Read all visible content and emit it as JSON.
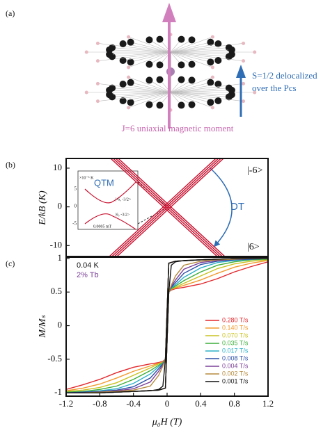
{
  "figure_a": {
    "label": "(a)",
    "spin_label_1": "S=1/2 delocalized",
    "spin_label_2": "over the Pcs",
    "moment_label": "J=6 uniaxial magnetic moment"
  },
  "chart_data": [
    {
      "type": "line",
      "panel_label": "(b)",
      "y_label": "E/kB (K)",
      "color": "#c8102e",
      "xlim": [
        -1.2,
        1.2
      ],
      "ylim": [
        -13,
        12.5
      ],
      "yticks": [
        -10,
        0,
        10
      ],
      "state_top": "|-6>",
      "state_bottom": "|6>",
      "transition_label": "DT",
      "inset": {
        "label": "QTM",
        "unit": "×10⁻⁶ K",
        "yticks": [
          "5",
          "0",
          "-5"
        ],
        "state_top": "|-6, -3/2>",
        "state_bottom": "|6, -3/2>",
        "scale": "0.0005 mT"
      },
      "series": [
        {
          "x": [
            -0.695,
            0.605
          ],
          "values": [
            13,
            -13
          ]
        },
        {
          "x": [
            -0.665,
            0.635
          ],
          "values": [
            13,
            -13
          ]
        },
        {
          "x": [
            -0.635,
            0.665
          ],
          "values": [
            13,
            -13
          ]
        },
        {
          "x": [
            -0.605,
            0.695
          ],
          "values": [
            13,
            -13
          ]
        },
        {
          "x": [
            -0.695,
            0.605
          ],
          "values": [
            -13,
            13
          ]
        },
        {
          "x": [
            -0.665,
            0.635
          ],
          "values": [
            -13,
            13
          ]
        },
        {
          "x": [
            -0.635,
            0.665
          ],
          "values": [
            -13,
            13
          ]
        },
        {
          "x": [
            -0.605,
            0.695
          ],
          "values": [
            -13,
            13
          ]
        }
      ]
    },
    {
      "type": "line",
      "panel_label": "(c)",
      "x_label": "μ₀H (T)",
      "y_label": "M/Mₛ",
      "temperature": "0.04 K",
      "doping": "2% Tb",
      "legend": "lower right",
      "xlim": [
        -1.2,
        1.2
      ],
      "ylim": [
        -1.05,
        1.03
      ],
      "xticks": [
        -1.2,
        -0.8,
        -0.4,
        0,
        0.4,
        0.8,
        1.2
      ],
      "yticks": [
        -1,
        -0.5,
        0,
        0.5,
        1
      ],
      "x": [
        -1.2,
        -0.8,
        -0.4,
        -0.1,
        -0.02,
        0.02,
        0.05,
        0.1,
        0.2,
        0.4,
        0.6,
        0.8,
        1.0,
        1.2,
        1.2,
        0.8,
        0.4,
        0.1,
        0.02,
        -0.02,
        -0.05,
        -0.1,
        -0.2,
        -0.4,
        -0.6,
        -0.8,
        -1.0,
        -1.2
      ],
      "series": [
        {
          "name": "0.280 T/s",
          "color": "#e3262b",
          "values": [
            -1,
            -1,
            -0.98,
            -0.96,
            -0.93,
            0.5,
            0.53,
            0.55,
            0.57,
            0.62,
            0.7,
            0.8,
            0.88,
            0.95,
            1,
            1,
            0.98,
            0.96,
            0.93,
            -0.5,
            -0.53,
            -0.55,
            -0.57,
            -0.62,
            -0.7,
            -0.8,
            -0.88,
            -0.95
          ]
        },
        {
          "name": "0.140 T/s",
          "color": "#f39a2d",
          "values": [
            -1,
            -1,
            -0.98,
            -0.96,
            -0.93,
            0.5,
            0.54,
            0.56,
            0.6,
            0.68,
            0.78,
            0.87,
            0.93,
            0.97,
            1,
            1,
            0.98,
            0.96,
            0.93,
            -0.5,
            -0.54,
            -0.56,
            -0.6,
            -0.68,
            -0.78,
            -0.87,
            -0.93,
            -0.97
          ]
        },
        {
          "name": "0.070 T/s",
          "color": "#c9c220",
          "values": [
            -1,
            -1,
            -0.98,
            -0.96,
            -0.93,
            0.5,
            0.55,
            0.57,
            0.63,
            0.74,
            0.85,
            0.92,
            0.96,
            0.98,
            1,
            1,
            0.98,
            0.96,
            0.93,
            -0.5,
            -0.55,
            -0.57,
            -0.63,
            -0.74,
            -0.85,
            -0.92,
            -0.96,
            -0.98
          ]
        },
        {
          "name": "0.035 T/s",
          "color": "#3cae3a",
          "values": [
            -1,
            -1,
            -0.98,
            -0.96,
            -0.93,
            0.5,
            0.55,
            0.59,
            0.67,
            0.8,
            0.9,
            0.95,
            0.98,
            0.99,
            1,
            1,
            0.98,
            0.96,
            0.93,
            -0.5,
            -0.55,
            -0.59,
            -0.67,
            -0.8,
            -0.9,
            -0.95,
            -0.98,
            -0.99
          ]
        },
        {
          "name": "0.017 T/s",
          "color": "#2bb0c9",
          "values": [
            -1,
            -1,
            -0.98,
            -0.96,
            -0.93,
            0.5,
            0.56,
            0.61,
            0.72,
            0.86,
            0.94,
            0.97,
            0.99,
            1,
            1,
            1,
            0.98,
            0.96,
            0.93,
            -0.5,
            -0.56,
            -0.61,
            -0.72,
            -0.86,
            -0.94,
            -0.97,
            -0.99,
            -1
          ]
        },
        {
          "name": "0.008 T/s",
          "color": "#2d4fa8",
          "values": [
            -1,
            -1,
            -0.98,
            -0.96,
            -0.93,
            0.5,
            0.57,
            0.64,
            0.78,
            0.91,
            0.96,
            0.98,
            0.99,
            1,
            1,
            1,
            0.98,
            0.96,
            0.93,
            -0.5,
            -0.57,
            -0.64,
            -0.78,
            -0.91,
            -0.96,
            -0.98,
            -0.99,
            -1
          ]
        },
        {
          "name": "0.004 T/s",
          "color": "#7b3f98",
          "values": [
            -1,
            -1,
            -0.98,
            -0.96,
            -0.93,
            0.5,
            0.58,
            0.68,
            0.84,
            0.94,
            0.97,
            0.99,
            1,
            1,
            1,
            1,
            0.98,
            0.96,
            0.93,
            -0.5,
            -0.58,
            -0.68,
            -0.84,
            -0.94,
            -0.97,
            -0.99,
            -1,
            -1
          ]
        },
        {
          "name": "0.002 T/s",
          "color": "#b58a3c",
          "values": [
            -1,
            -1,
            -0.98,
            -0.96,
            -0.93,
            0.5,
            0.6,
            0.74,
            0.9,
            0.96,
            0.98,
            0.99,
            1,
            1,
            1,
            1,
            0.98,
            0.96,
            0.93,
            -0.5,
            -0.6,
            -0.74,
            -0.9,
            -0.96,
            -0.98,
            -0.99,
            -1,
            -1
          ]
        },
        {
          "name": "0.001 T/s",
          "color": "#111111",
          "values": [
            -1,
            -1,
            -0.98,
            -0.96,
            -0.93,
            0.5,
            0.9,
            0.95,
            0.97,
            0.98,
            0.99,
            1,
            1,
            1,
            1,
            1,
            0.98,
            0.96,
            0.93,
            -0.5,
            -0.9,
            -0.95,
            -0.97,
            -0.98,
            -0.99,
            -1,
            -1,
            -1
          ]
        }
      ]
    }
  ]
}
